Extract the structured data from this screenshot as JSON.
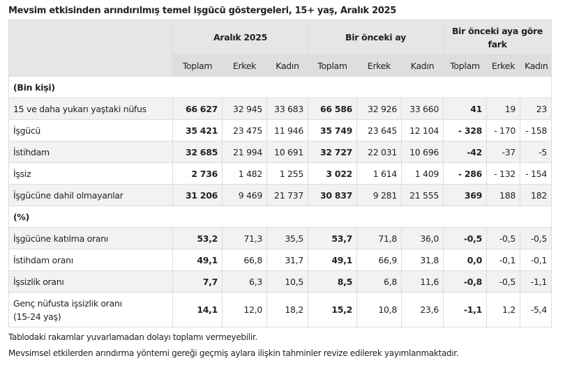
{
  "title": "Mevsim etkisinden arındırılmış temel işgücü göstergeleri, 15+ yaş, Aralık 2025",
  "groups": [
    "Aralık 2025",
    "Bir önceki ay",
    "Bir önceki aya göre fark"
  ],
  "subheaders": [
    "Toplam",
    "Erkek",
    "Kadın",
    "Toplam",
    "Erkek",
    "Kadın",
    "Toplam",
    "Erkek",
    "Kadın"
  ],
  "sections": [
    {
      "label": "(Bin kişi)",
      "rows": [
        {
          "label": "15 ve daha yukarı yaştaki nüfus",
          "values": [
            "66 627",
            "32 945",
            "33 683",
            "66 586",
            "32 926",
            "33 660",
            "41",
            "19",
            "23"
          ]
        },
        {
          "label": "İşgücü",
          "values": [
            "35 421",
            "23 475",
            "11 946",
            "35 749",
            "23 645",
            "12 104",
            "- 328",
            "- 170",
            "- 158"
          ]
        },
        {
          "label": "İstihdam",
          "values": [
            "32 685",
            "21 994",
            "10 691",
            "32 727",
            "22 031",
            "10 696",
            "-42",
            "-37",
            "-5"
          ]
        },
        {
          "label": "İşsiz",
          "values": [
            "2 736",
            "1 482",
            "1 255",
            "3 022",
            "1 614",
            "1 409",
            "- 286",
            "- 132",
            "- 154"
          ]
        },
        {
          "label": "İşgücüne dahil olmayanlar",
          "values": [
            "31 206",
            "9 469",
            "21 737",
            "30 837",
            "9 281",
            "21 555",
            "369",
            "188",
            "182"
          ]
        }
      ]
    },
    {
      "label": "(%)",
      "rows": [
        {
          "label": "İşgücüne katılma oranı",
          "values": [
            "53,2",
            "71,3",
            "35,5",
            "53,7",
            "71,8",
            "36,0",
            "-0,5",
            "-0,5",
            "-0,5"
          ]
        },
        {
          "label": "İstihdam oranı",
          "values": [
            "49,1",
            "66,8",
            "31,7",
            "49,1",
            "66,9",
            "31,8",
            "0,0",
            "-0,1",
            "-0,1"
          ]
        },
        {
          "label": "İşsizlik oranı",
          "values": [
            "7,7",
            "6,3",
            "10,5",
            "8,5",
            "6,8",
            "11,6",
            "-0,8",
            "-0,5",
            "-1,1"
          ]
        },
        {
          "label": "Genç nüfusta işsizlik oranı",
          "label2": "(15-24 yaş)",
          "values": [
            "14,1",
            "12,0",
            "18,2",
            "15,2",
            "10,8",
            "23,6",
            "-1,1",
            "1,2",
            "-5,4"
          ]
        }
      ]
    }
  ],
  "notes": [
    "Tablodaki rakamlar yuvarlamadan dolayı toplamı vermeyebilir.",
    "Mevsimsel etkilerden arındırma yöntemi gereği geçmiş aylara ilişkin tahminler revize edilerek yayımlanmaktadır."
  ]
}
